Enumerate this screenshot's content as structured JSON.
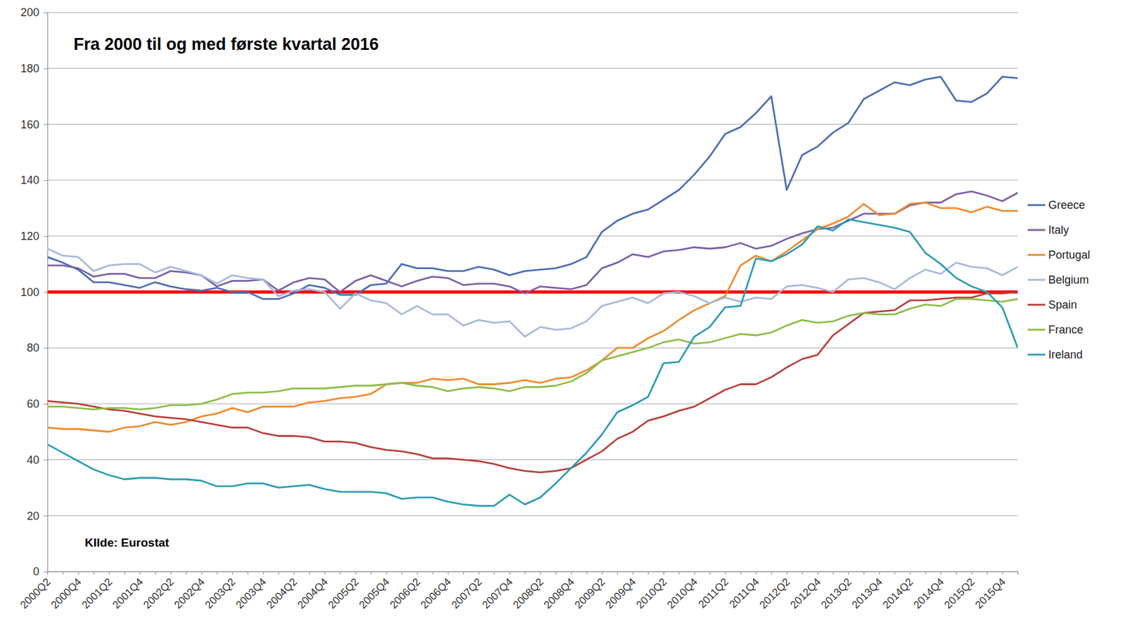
{
  "chart_data": {
    "type": "line",
    "title": "Fra 2000 til og med første kvartal 2016",
    "source": "KIlde: Eurostat",
    "categories": [
      "2000Q2",
      null,
      "2000Q4",
      null,
      "2001Q2",
      null,
      "2001Q4",
      null,
      "2002Q2",
      null,
      "2002Q4",
      null,
      "2003Q2",
      null,
      "2003Q4",
      null,
      "2004Q2",
      null,
      "2004Q4",
      null,
      "2005Q2",
      null,
      "2005Q4",
      null,
      "2006Q2",
      null,
      "2006Q4",
      null,
      "2007Q2",
      null,
      "2007Q4",
      null,
      "2008Q2",
      null,
      "2008Q4",
      null,
      "2009Q2",
      null,
      "2009Q4",
      null,
      "2010Q2",
      null,
      "2010Q4",
      null,
      "2011Q2",
      null,
      "2011Q4",
      null,
      "2012Q2",
      null,
      "2012Q4",
      null,
      "2013Q2",
      null,
      "2013Q4",
      null,
      "2014Q2",
      null,
      "2014Q4",
      null,
      "2015Q2",
      null,
      "2015Q4",
      null
    ],
    "series": [
      {
        "name": "Greece",
        "color": "#4a6eb4",
        "values": [
          112.5,
          110.5,
          108,
          103.5,
          103.5,
          102.5,
          101.5,
          103.5,
          102,
          101,
          100.5,
          101.5,
          100,
          100,
          97.5,
          97.5,
          99.5,
          102.5,
          101.5,
          99,
          99,
          102.5,
          103,
          110,
          108.5,
          108.5,
          107.5,
          107.5,
          109,
          108,
          106,
          107.5,
          108,
          108.5,
          110,
          112.5,
          121.5,
          125.5,
          128,
          129.5,
          133,
          136.5,
          142,
          148.5,
          156.5,
          159,
          164,
          170,
          136.5,
          149,
          152,
          157,
          160.5,
          169,
          172,
          175,
          174,
          176,
          177,
          168.5,
          168,
          171,
          177,
          176.5
        ]
      },
      {
        "name": "Italy",
        "color": "#7d5fa6",
        "values": [
          109.5,
          109.5,
          108.5,
          105.5,
          106.5,
          106.5,
          105,
          105,
          107.5,
          107,
          106,
          102,
          104,
          104,
          104.5,
          100.5,
          103.5,
          105,
          104.5,
          100,
          104,
          106,
          104,
          102,
          104,
          105.5,
          105,
          102.5,
          103,
          103,
          102,
          99.5,
          102,
          101.5,
          101,
          102.5,
          108.5,
          110.5,
          113.5,
          112.5,
          114.5,
          115,
          116,
          115.5,
          116,
          117.5,
          115.5,
          116.5,
          119,
          121,
          122.5,
          123,
          125.5,
          128,
          128,
          128,
          131,
          132,
          132,
          135,
          136,
          134.5,
          132.5,
          135.5
        ]
      },
      {
        "name": "Portugal",
        "color": "#f08a2c",
        "values": [
          51.5,
          51,
          51,
          50.5,
          50,
          51.5,
          52,
          53.5,
          52.5,
          53.5,
          55.5,
          56.5,
          58.5,
          57,
          59,
          59,
          59,
          60.5,
          61,
          62,
          62.5,
          63.5,
          67,
          67.5,
          67.5,
          69,
          68.5,
          69,
          67,
          67,
          67.5,
          68.5,
          67.5,
          69,
          69.5,
          72,
          75.5,
          80,
          80,
          83.5,
          86,
          90,
          93.5,
          96,
          98.5,
          109.5,
          113,
          111,
          114.5,
          118.5,
          122.5,
          124.5,
          127,
          131.5,
          127.5,
          128,
          131.5,
          132,
          130,
          130,
          128.5,
          130.5,
          129,
          129
        ]
      },
      {
        "name": "Belgium",
        "color": "#a7b9dc",
        "values": [
          115.5,
          113,
          112.5,
          107.5,
          109.5,
          110,
          110,
          107,
          109,
          107.5,
          106,
          103,
          106,
          105,
          104.5,
          98.5,
          100.5,
          101,
          100,
          94,
          99.5,
          97,
          96,
          92,
          95,
          92,
          92,
          88,
          90,
          89,
          89.5,
          84,
          87.5,
          86.5,
          87,
          89.5,
          95,
          96.5,
          98,
          96,
          99.5,
          100,
          98.5,
          96,
          98,
          96.5,
          98,
          97.5,
          102,
          102.5,
          101.5,
          100,
          104.5,
          105,
          103.5,
          101,
          105,
          108,
          106.5,
          110.5,
          109,
          108.5,
          106,
          109
        ]
      },
      {
        "name": "Spain",
        "color": "#b8403a",
        "values": [
          61,
          60.5,
          60,
          59,
          58,
          57.5,
          56.5,
          55.5,
          55,
          54.5,
          53.5,
          52.5,
          51.5,
          51.5,
          49.5,
          48.5,
          48.5,
          48,
          46.5,
          46.5,
          46,
          44.5,
          43.5,
          43,
          42,
          40.5,
          40.5,
          40,
          39.5,
          38.5,
          37,
          36,
          35.5,
          36,
          37,
          40,
          43,
          47.5,
          50,
          54,
          55.5,
          57.5,
          59,
          62,
          65,
          67,
          67,
          69.5,
          73,
          76,
          77.5,
          84.5,
          88.5,
          92.5,
          93,
          93.5,
          97,
          97,
          97.5,
          98,
          98,
          99.5,
          99.5,
          100
        ]
      },
      {
        "name": "France",
        "color": "#8dbd48",
        "values": [
          59,
          59,
          58.5,
          58,
          58.5,
          58.5,
          58,
          58.5,
          59.5,
          59.5,
          60,
          61.5,
          63.5,
          64,
          64,
          64.5,
          65.5,
          65.5,
          65.5,
          66,
          66.5,
          66.5,
          67,
          67.5,
          66.5,
          66,
          64.5,
          65.5,
          66,
          65.5,
          64.5,
          66,
          66,
          66.5,
          68,
          71,
          75.5,
          77,
          78.5,
          80,
          82,
          83,
          81.5,
          82,
          83.5,
          85,
          84.5,
          85.5,
          88,
          90,
          89,
          89.5,
          91.5,
          92.5,
          92,
          92,
          94,
          95.5,
          95,
          97.5,
          97.5,
          97,
          96.5,
          97.5
        ]
      },
      {
        "name": "Ireland",
        "color": "#2a9db3",
        "values": [
          45.5,
          42.5,
          39.5,
          36.5,
          34.5,
          33,
          33.5,
          33.5,
          33,
          33,
          32.5,
          30.5,
          30.5,
          31.5,
          31.5,
          30,
          30.5,
          31,
          29.5,
          28.5,
          28.5,
          28.5,
          28,
          26,
          26.5,
          26.5,
          25,
          24,
          23.5,
          23.5,
          27.5,
          24,
          26.5,
          31.5,
          37,
          42.5,
          49,
          57,
          59.5,
          62.5,
          74.5,
          75,
          84,
          87.5,
          94.5,
          95,
          112,
          111,
          113.5,
          117,
          123.5,
          122,
          126,
          125,
          124,
          123,
          121.5,
          114,
          110,
          105,
          102,
          100,
          94.5,
          80
        ]
      }
    ],
    "reference_line": {
      "value": 100,
      "color": "#ff0000"
    },
    "ylim": [
      0,
      200
    ],
    "yticks": [
      0,
      20,
      40,
      60,
      80,
      100,
      120,
      140,
      160,
      180,
      200
    ],
    "grid": true,
    "legend": "right"
  }
}
